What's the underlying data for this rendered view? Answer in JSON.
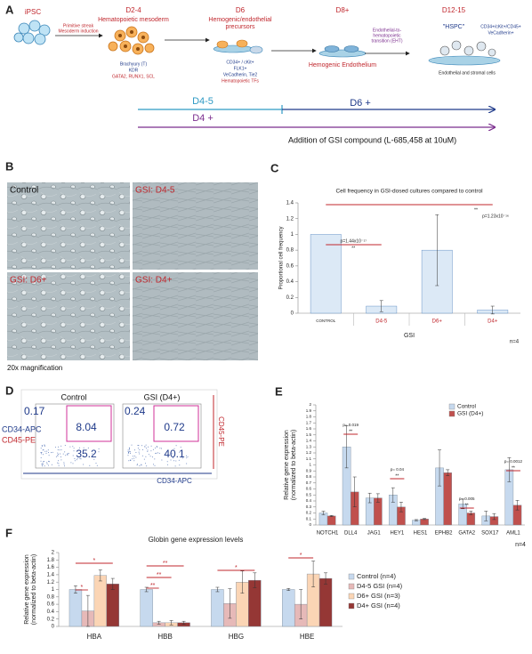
{
  "panel_a": {
    "label": "A",
    "ipsc": "iPSC",
    "arrow_1": [
      "Primitive streak",
      "Mesoderm induction"
    ],
    "stage_1": {
      "day": "D2-4",
      "name": "Hematopoietic mesoderm",
      "markers": [
        "Brachyury (T)",
        "KDR",
        "GATA2, RUNX1, SCL"
      ]
    },
    "stage_2": {
      "day": "D6",
      "name": [
        "Hemogenic/endothelial",
        "precursors"
      ],
      "markers": [
        "CD34+ / cKit+",
        "FLK1+",
        "VeCadherin, Tie2",
        "Hematopoietic TFs"
      ]
    },
    "stage_3": {
      "day": "D8+",
      "name": "Hemogenic Endothelium"
    },
    "arrow_4": [
      "Endothelial-to-",
      "hematopoietic",
      "transition (EHT)"
    ],
    "stage_4": {
      "day": "D12-15",
      "name": "\"HSPC\"",
      "markers": [
        "CD34+/cKit+/CD45+",
        "VeCadherin+"
      ],
      "note": "Endothelial and stromal cells"
    },
    "timeline": {
      "d45": "D4-5",
      "d6": "D6 +",
      "d4": "D4 +",
      "caption": "Addition of GSI compound (L-685,458 at 10uM)"
    }
  },
  "panel_b": {
    "label": "B",
    "images": [
      "Control",
      "GSI: D4-5",
      "GSI: D6+",
      "GSI: D4+"
    ],
    "caption": "20x magnification"
  },
  "panel_c_label": "C",
  "panel_d": {
    "label": "D",
    "plots": [
      {
        "title": "Control",
        "quadrants": [
          0.17,
          8.04,
          35.2
        ]
      },
      {
        "title": "GSI (D4+)",
        "quadrants": [
          0.24,
          0.72,
          40.1
        ]
      }
    ],
    "y_axis": [
      "CD34-APC",
      "CD45-PE"
    ],
    "right_label": "CD45-PE",
    "x_axis": "CD34-APC"
  },
  "panel_e_label": "E",
  "panel_f_label": "F",
  "chart_data": [
    {
      "type": "bar",
      "title": "Cell frequency in GSI-dosed cultures compared to control",
      "ylabel": "Proportional cell frequency",
      "xlabel": "GSI",
      "categories": [
        "CONTROL",
        "D4-5",
        "D6+",
        "D4+"
      ],
      "values": [
        1,
        0.09,
        0.8,
        0.04
      ],
      "errors": [
        null,
        0.07,
        0.45,
        0.05
      ],
      "color": "#dce9f6",
      "ylim": [
        0,
        1.4
      ],
      "yticks": [
        0,
        0.2,
        0.4,
        0.6,
        0.8,
        1,
        1.2,
        1.4
      ],
      "annotations": [
        "p=1.44x10⁻¹⁷",
        "**",
        "**",
        "p=1.23x10⁻¹⁶",
        "n=4"
      ]
    },
    {
      "type": "bar",
      "ylabel": [
        "Relative gene expression",
        "(normalized to beta-actin)"
      ],
      "categories": [
        "NOTCH1",
        "DLL4",
        "JAG1",
        "HEY1",
        "HES1",
        "EPHB2",
        "GATA2",
        "SOX17",
        "AML1"
      ],
      "series": [
        {
          "name": "Control",
          "color": "#c6d9ee",
          "values": [
            0.2,
            1.3,
            0.45,
            0.5,
            0.08,
            0.95,
            0.35,
            0.15,
            0.92
          ],
          "errors": [
            0.03,
            0.35,
            0.08,
            0.12,
            0.01,
            0.3,
            0.08,
            0.08,
            0.2
          ]
        },
        {
          "name": "GSI (D4+)",
          "color": "#c0504d",
          "values": [
            0.15,
            0.55,
            0.45,
            0.3,
            0.1,
            0.87,
            0.2,
            0.14,
            0.33
          ],
          "errors": [
            0.01,
            0.25,
            0.07,
            0.08,
            0.01,
            0.05,
            0.03,
            0.05,
            0.08
          ]
        }
      ],
      "ylim": [
        0,
        2
      ],
      "yticks": [
        0,
        0.1,
        0.2,
        0.3,
        0.4,
        0.5,
        0.6,
        0.7,
        0.8,
        0.9,
        1,
        1.1,
        1.2,
        1.3,
        1.4,
        1.5,
        1.6,
        1.7,
        1.8,
        1.9,
        2
      ],
      "annotations": [
        "p= 0.019",
        "**",
        "p= 0.04",
        "**",
        "p= 0.005",
        "**",
        "p= 0.0012",
        "**",
        "n=4"
      ]
    },
    {
      "type": "bar",
      "title": "Globin gene expression levels",
      "ylabel": [
        "Relative gene expression",
        "(normalized to beta-actin)"
      ],
      "categories": [
        "HBA",
        "HBB",
        "HBG",
        "HBE"
      ],
      "series": [
        {
          "name": "Control (n=4)",
          "color": "#c6d9ee",
          "values": [
            1,
            1,
            1,
            1
          ],
          "errors": [
            0.1,
            0.06,
            0.06,
            0.03
          ]
        },
        {
          "name": "D4-5 GSI (n=4)",
          "color": "#e6b9b8",
          "values": [
            0.42,
            0.1,
            0.62,
            0.6
          ],
          "errors": [
            0.42,
            0.04,
            0.4,
            0.4
          ]
        },
        {
          "name": "D6+ GSI (n=3)",
          "color": "#fbd5b5",
          "values": [
            1.38,
            0.1,
            1.2,
            1.42
          ],
          "errors": [
            0.15,
            0.06,
            0.3,
            0.35
          ]
        },
        {
          "name": "D4+ GSI (n=4)",
          "color": "#953735",
          "values": [
            1.15,
            0.1,
            1.25,
            1.3
          ],
          "errors": [
            0.15,
            0.04,
            0.2,
            0.15
          ]
        }
      ],
      "ylim": [
        0,
        2
      ],
      "yticks": [
        0,
        0.2,
        0.4,
        0.6,
        0.8,
        1,
        1.2,
        1.4,
        1.6,
        1.8,
        2
      ],
      "annotations": [
        "*",
        "*",
        "**",
        "**",
        "**",
        "*",
        "*"
      ]
    }
  ]
}
